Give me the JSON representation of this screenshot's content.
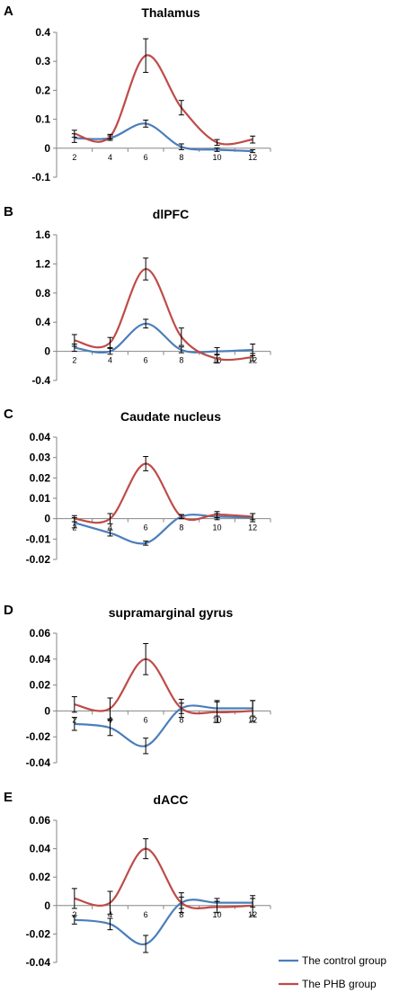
{
  "colors": {
    "control": "#4a7ebb",
    "phb": "#be4b48",
    "axis": "#868686",
    "errorbar": "#000000"
  },
  "legend": [
    {
      "name": "The control group",
      "color": "#4a7ebb"
    },
    {
      "name": "The PHB group",
      "color": "#be4b48"
    }
  ],
  "chart_data": [
    {
      "letter": "A",
      "title": "Thalamus",
      "type": "line",
      "x": [
        2,
        4,
        6,
        8,
        10,
        12
      ],
      "ylim": [
        -0.1,
        0.4
      ],
      "yticks": [
        "0.4",
        "0.3",
        "0.2",
        "0.1",
        "0",
        "-0.1"
      ],
      "ytick_values": [
        0.4,
        0.3,
        0.2,
        0.1,
        0,
        -0.1
      ],
      "series": [
        {
          "name": "The control group",
          "values": [
            0.035,
            0.035,
            0.085,
            0.005,
            -0.005,
            -0.01
          ],
          "errors": [
            0.015,
            0.008,
            0.012,
            0.01,
            0.006,
            0.005
          ]
        },
        {
          "name": "The PHB group",
          "values": [
            0.05,
            0.04,
            0.32,
            0.14,
            0.02,
            0.03
          ],
          "errors": [
            0.012,
            0.008,
            0.058,
            0.025,
            0.01,
            0.012
          ]
        }
      ]
    },
    {
      "letter": "B",
      "title": "dlPFC",
      "type": "line",
      "x": [
        2,
        4,
        6,
        8,
        10,
        12
      ],
      "ylim": [
        -0.4,
        1.6
      ],
      "yticks": [
        "1.6",
        "1.2",
        "0.8",
        "0.4",
        "0",
        "-0.4"
      ],
      "ytick_values": [
        1.6,
        1.2,
        0.8,
        0.4,
        0,
        -0.4
      ],
      "series": [
        {
          "name": "The control group",
          "values": [
            0.05,
            0.0,
            0.38,
            0.02,
            0.0,
            0.02
          ],
          "errors": [
            0.05,
            0.04,
            0.06,
            0.04,
            0.05,
            0.08
          ]
        },
        {
          "name": "The PHB group",
          "values": [
            0.15,
            0.12,
            1.13,
            0.2,
            -0.1,
            -0.08
          ],
          "errors": [
            0.08,
            0.07,
            0.15,
            0.12,
            0.06,
            0.05
          ]
        }
      ]
    },
    {
      "letter": "C",
      "title": "Caudate nucleus",
      "type": "line",
      "x": [
        2,
        4,
        6,
        8,
        10,
        12
      ],
      "ylim": [
        -0.02,
        0.04
      ],
      "yticks": [
        "0.04",
        "0.03",
        "0.02",
        "0.01",
        "0",
        "-0.01",
        "-0.02"
      ],
      "ytick_values": [
        0.04,
        0.03,
        0.02,
        0.01,
        0,
        -0.01,
        -0.02
      ],
      "series": [
        {
          "name": "The control group",
          "values": [
            -0.002,
            -0.007,
            -0.012,
            0.001,
            0.001,
            0.0005
          ],
          "errors": [
            0.0025,
            0.0015,
            0.001,
            0.001,
            0.0015,
            0.002
          ]
        },
        {
          "name": "The PHB group",
          "values": [
            0.0,
            0.0,
            0.027,
            0.001,
            0.002,
            0.001
          ],
          "errors": [
            0.0015,
            0.0025,
            0.0035,
            0.001,
            0.0015,
            0.0015
          ]
        }
      ]
    },
    {
      "letter": "D",
      "title": "supramarginal gyrus",
      "type": "line",
      "x": [
        2,
        4,
        6,
        8,
        10,
        12
      ],
      "ylim": [
        -0.04,
        0.06
      ],
      "yticks": [
        "0.06",
        "0.04",
        "0.02",
        "0",
        "-0.02",
        "-0.04"
      ],
      "ytick_values": [
        0.06,
        0.04,
        0.02,
        0,
        -0.02,
        -0.04
      ],
      "series": [
        {
          "name": "The control group",
          "values": [
            -0.01,
            -0.013,
            -0.027,
            0.002,
            0.002,
            0.002
          ],
          "errors": [
            0.005,
            0.006,
            0.006,
            0.004,
            0.006,
            0.006
          ]
        },
        {
          "name": "The PHB group",
          "values": [
            0.005,
            0.002,
            0.04,
            0.002,
            -0.001,
            0.0
          ],
          "errors": [
            0.006,
            0.008,
            0.012,
            0.007,
            0.008,
            0.008
          ]
        }
      ]
    },
    {
      "letter": "E",
      "title": "dACC",
      "type": "line",
      "x": [
        2,
        4,
        6,
        8,
        10,
        12
      ],
      "ylim": [
        -0.04,
        0.06
      ],
      "yticks": [
        "0.06",
        "0.04",
        "0.02",
        "0",
        "-0.02",
        "-0.04"
      ],
      "ytick_values": [
        0.06,
        0.04,
        0.02,
        0,
        -0.02,
        -0.04
      ],
      "series": [
        {
          "name": "The control group",
          "values": [
            -0.01,
            -0.013,
            -0.027,
            0.002,
            0.002,
            0.002
          ],
          "errors": [
            0.003,
            0.004,
            0.006,
            0.004,
            0.003,
            0.003
          ]
        },
        {
          "name": "The PHB group",
          "values": [
            0.005,
            0.002,
            0.04,
            0.002,
            -0.001,
            0.0
          ],
          "errors": [
            0.007,
            0.008,
            0.007,
            0.007,
            0.004,
            0.007
          ]
        }
      ]
    }
  ]
}
